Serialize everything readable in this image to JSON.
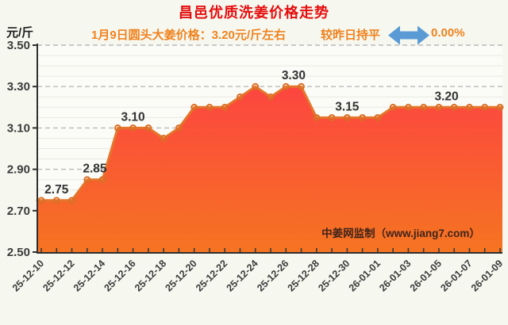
{
  "header": {
    "title": "昌邑优质洗姜价格走势",
    "unit_label": "元/斤",
    "subtitle": "1月9日圆头大姜价格：3.20元/斤左右",
    "trend": {
      "label": "较昨日持平",
      "value": "0.00%",
      "icon": "flat-double-arrow",
      "icon_color": "#5b9bd5"
    }
  },
  "watermark": "中姜网监制（www.jiang7.com）",
  "colors": {
    "title": "#e60d0d",
    "subtitle": "#f0821e",
    "line": "#e4762b",
    "marker_ring": "#d96f26",
    "area_top": "#fd4440",
    "area_bottom": "#f57422",
    "grid_major": "#b9b9b9",
    "grid_minor": "#e9e8e0",
    "axis": "#2f2f2f",
    "tick_label": "#3b3b3b",
    "data_label": "#333333",
    "watermark_color": "#40241a",
    "page_bg": "#f6f8f0",
    "plot_bg": "#fbfcf8"
  },
  "chart_data": {
    "type": "area",
    "title": "昌邑优质洗姜价格走势",
    "ylabel": "元/斤",
    "x": [
      "25-12-10",
      "25-12-11",
      "25-12-12",
      "25-12-13",
      "25-12-14",
      "25-12-15",
      "25-12-16",
      "25-12-17",
      "25-12-18",
      "25-12-19",
      "25-12-20",
      "25-12-21",
      "25-12-22",
      "25-12-23",
      "25-12-24",
      "25-12-25",
      "25-12-26",
      "25-12-27",
      "25-12-28",
      "25-12-29",
      "25-12-30",
      "25-12-31",
      "26-01-01",
      "26-01-02",
      "26-01-03",
      "26-01-04",
      "26-01-05",
      "26-01-06",
      "26-01-07",
      "26-01-08",
      "26-01-09"
    ],
    "values": [
      2.75,
      2.75,
      2.75,
      2.85,
      2.85,
      3.1,
      3.1,
      3.1,
      3.05,
      3.1,
      3.2,
      3.2,
      3.2,
      3.25,
      3.3,
      3.25,
      3.3,
      3.3,
      3.15,
      3.15,
      3.15,
      3.15,
      3.15,
      3.2,
      3.2,
      3.2,
      3.2,
      3.2,
      3.2,
      3.2,
      3.2
    ],
    "x_tick_step": 2,
    "ylim": [
      2.5,
      3.5
    ],
    "y_ticks": [
      2.5,
      2.7,
      2.9,
      3.1,
      3.3,
      3.5
    ],
    "y_minor_step": 0.05,
    "grid": "major-dashed-minor-solid",
    "legend": "none",
    "annotations": [
      {
        "text": "2.75",
        "index": 1,
        "value": 2.75
      },
      {
        "text": "2.85",
        "index": 3.5,
        "value": 2.85
      },
      {
        "text": "3.10",
        "index": 6,
        "value": 3.1
      },
      {
        "text": "3.30",
        "index": 16.5,
        "value": 3.3
      },
      {
        "text": "3.15",
        "index": 20,
        "value": 3.15
      },
      {
        "text": "3.20",
        "index": 26.5,
        "value": 3.2
      }
    ]
  }
}
